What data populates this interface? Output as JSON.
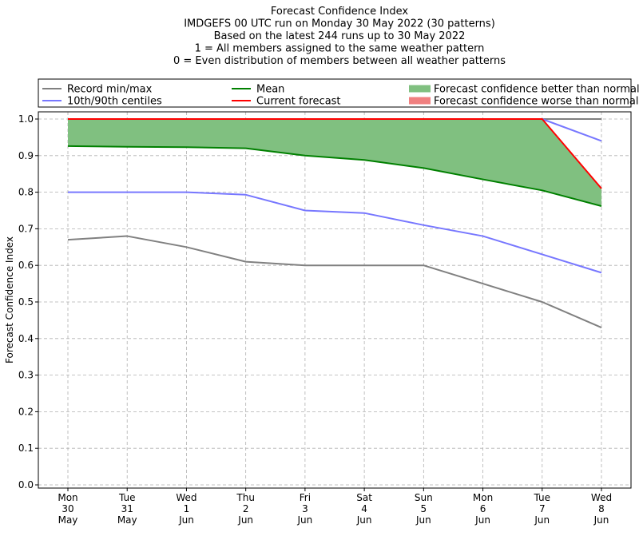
{
  "chart_data": {
    "type": "line",
    "title_lines": [
      "Forecast Confidence Index",
      "IMDGEFS 00 UTC run on Monday 30 May 2022 (30 patterns)",
      "Based on the latest 244 runs up to 30 May 2022",
      "1 = All members assigned to the same weather pattern",
      "0 = Even distribution of members between all weather patterns"
    ],
    "ylabel": "Forecast Confidence Index",
    "ylim": [
      0,
      1.0
    ],
    "y_ticks": [
      "0.0",
      "0.1",
      "0.2",
      "0.3",
      "0.4",
      "0.5",
      "0.6",
      "0.7",
      "0.8",
      "0.9",
      "1.0"
    ],
    "y_tick_values": [
      0,
      0.1,
      0.2,
      0.3,
      0.4,
      0.5,
      0.6,
      0.7,
      0.8,
      0.9,
      1.0
    ],
    "grid": true,
    "legend_position": "top",
    "categories": [
      [
        "Mon",
        "30",
        "May"
      ],
      [
        "Tue",
        "31",
        "May"
      ],
      [
        "Wed",
        "1",
        "Jun"
      ],
      [
        "Thu",
        "2",
        "Jun"
      ],
      [
        "Fri",
        "3",
        "Jun"
      ],
      [
        "Sat",
        "4",
        "Jun"
      ],
      [
        "Sun",
        "5",
        "Jun"
      ],
      [
        "Mon",
        "6",
        "Jun"
      ],
      [
        "Tue",
        "7",
        "Jun"
      ],
      [
        "Wed",
        "8",
        "Jun"
      ]
    ],
    "legend": [
      {
        "label": "Record min/max",
        "kind": "line",
        "color": "#808080"
      },
      {
        "label": "10th/90th centiles",
        "kind": "line",
        "color": "#7777ff"
      },
      {
        "label": "Mean",
        "kind": "line",
        "color": "#008000"
      },
      {
        "label": "Current forecast",
        "kind": "line",
        "color": "#ff0000"
      },
      {
        "label": "Forecast confidence better than normal",
        "kind": "patch",
        "color": "#80c080"
      },
      {
        "label": "Forecast confidence worse than normal",
        "kind": "patch",
        "color": "#f08080"
      }
    ],
    "series": [
      {
        "role": "record_min",
        "color": "#808080",
        "values": [
          0.67,
          0.68,
          0.65,
          0.61,
          0.6,
          0.6,
          0.6,
          0.55,
          0.5,
          0.43
        ]
      },
      {
        "role": "record_max",
        "color": "#808080",
        "values": [
          1.0,
          1.0,
          1.0,
          1.0,
          1.0,
          1.0,
          1.0,
          1.0,
          1.0,
          1.0
        ]
      },
      {
        "role": "p10",
        "color": "#7777ff",
        "values": [
          0.8,
          0.8,
          0.8,
          0.793,
          0.75,
          0.743,
          0.71,
          0.68,
          0.63,
          0.58
        ]
      },
      {
        "role": "p90",
        "color": "#7777ff",
        "values": [
          1.0,
          1.0,
          1.0,
          1.0,
          1.0,
          1.0,
          1.0,
          1.0,
          1.0,
          0.94
        ]
      },
      {
        "role": "mean",
        "color": "#008000",
        "values": [
          0.926,
          0.924,
          0.923,
          0.92,
          0.9,
          0.888,
          0.866,
          0.835,
          0.805,
          0.762
        ]
      },
      {
        "role": "current",
        "color": "#ff0000",
        "values": [
          1.0,
          1.0,
          1.0,
          1.0,
          1.0,
          1.0,
          1.0,
          1.0,
          1.0,
          0.81
        ]
      }
    ],
    "fill_better_color": "#80c080",
    "fill_worse_color": "#f08080"
  }
}
